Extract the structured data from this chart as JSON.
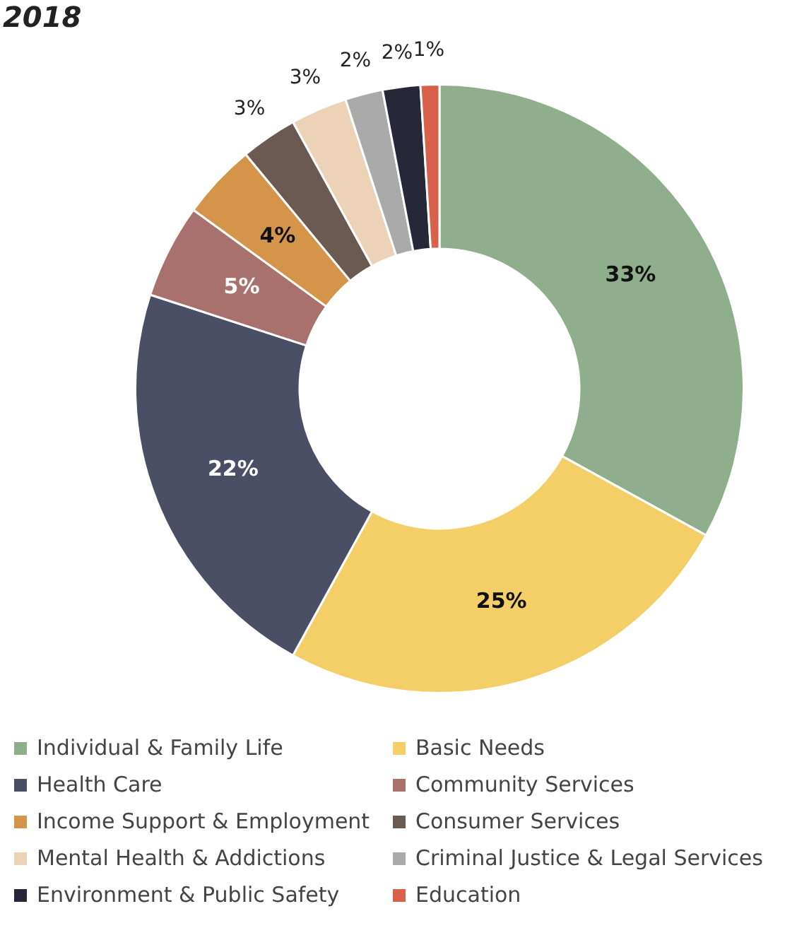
{
  "chart_data": {
    "type": "donut",
    "title": "2018",
    "categories": [
      "Individual & Family Life",
      "Basic Needs",
      "Health Care",
      "Community Services",
      "Income Support & Employment",
      "Consumer Services",
      "Mental Health & Addictions",
      "Criminal Justice & Legal Services",
      "Environment & Public Safety",
      "Education"
    ],
    "values": [
      33,
      25,
      22,
      5,
      4,
      3,
      3,
      2,
      2,
      1
    ],
    "colors": [
      "#8faf8c",
      "#f4cf67",
      "#4a4f66",
      "#a8716c",
      "#d4954a",
      "#6b5a52",
      "#ecd3b8",
      "#aaaaaa",
      "#262838",
      "#d9604a"
    ],
    "value_labels": [
      "33%",
      "25%",
      "22%",
      "5%",
      "4%",
      "3%",
      "3%",
      "2%",
      "2%",
      "1%"
    ],
    "legend": "bottom"
  }
}
